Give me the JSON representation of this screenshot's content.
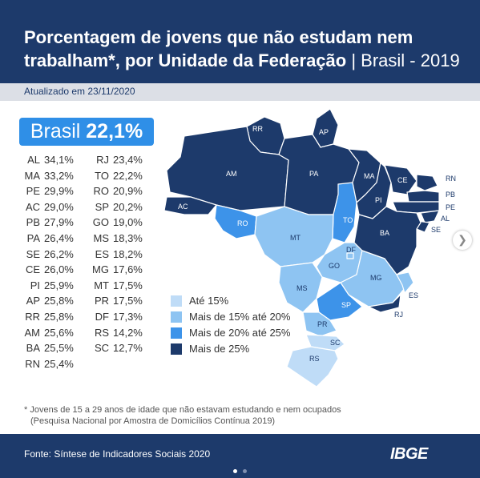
{
  "title": {
    "line1": "Porcentagem de jovens que não estudam nem",
    "line2_main": "trabalham*, por Unidade da Federação",
    "line2_sep": " | Brasil - 2019"
  },
  "updated": "Atualizado em 23/11/2020",
  "brasil": {
    "label": "Brasil",
    "value": "22,1%"
  },
  "ranking_left": [
    {
      "uf": "AL",
      "value": "34,1%"
    },
    {
      "uf": "MA",
      "value": "33,2%"
    },
    {
      "uf": "PE",
      "value": "29,9%"
    },
    {
      "uf": "AC",
      "value": "29,0%"
    },
    {
      "uf": "PB",
      "value": "27,9%"
    },
    {
      "uf": "PA",
      "value": "26,4%"
    },
    {
      "uf": "SE",
      "value": "26,2%"
    },
    {
      "uf": "CE",
      "value": "26,0%"
    },
    {
      "uf": "PI",
      "value": "25,9%"
    },
    {
      "uf": "AP",
      "value": "25,8%"
    },
    {
      "uf": "RR",
      "value": "25,8%"
    },
    {
      "uf": "AM",
      "value": "25,6%"
    },
    {
      "uf": "BA",
      "value": "25,5%"
    },
    {
      "uf": "RN",
      "value": "25,4%"
    }
  ],
  "ranking_right": [
    {
      "uf": "RJ",
      "value": "23,4%"
    },
    {
      "uf": "TO",
      "value": "22,2%"
    },
    {
      "uf": "RO",
      "value": "20,9%"
    },
    {
      "uf": "SP",
      "value": "20,2%"
    },
    {
      "uf": "GO",
      "value": "19,0%"
    },
    {
      "uf": "MS",
      "value": "18,3%"
    },
    {
      "uf": "ES",
      "value": "18,2%"
    },
    {
      "uf": "MG",
      "value": "17,6%"
    },
    {
      "uf": "MT",
      "value": "17,5%"
    },
    {
      "uf": "PR",
      "value": "17,5%"
    },
    {
      "uf": "DF",
      "value": "17,3%"
    },
    {
      "uf": "RS",
      "value": "14,2%"
    },
    {
      "uf": "SC",
      "value": "12,7%"
    }
  ],
  "legend": [
    {
      "label": "Até 15%",
      "color": "#bfdcf7"
    },
    {
      "label": "Mais de 15% até 20%",
      "color": "#8ec4f2"
    },
    {
      "label": "Mais de 20% até 25%",
      "color": "#3d93e9"
    },
    {
      "label": "Mais de 25%",
      "color": "#1d3a6b"
    }
  ],
  "map_labels": {
    "RR": "RR",
    "AP": "AP",
    "AM": "AM",
    "PA": "PA",
    "MA": "MA",
    "CE": "CE",
    "RN": "RN",
    "PB": "PB",
    "PE": "PE",
    "AL": "AL",
    "SE": "SE",
    "PI": "PI",
    "AC": "AC",
    "RO": "RO",
    "TO": "TO",
    "BA": "BA",
    "MT": "MT",
    "DF": "DF",
    "GO": "GO",
    "MG": "MG",
    "ES": "ES",
    "MS": "MS",
    "SP": "SP",
    "RJ": "RJ",
    "PR": "PR",
    "SC": "SC",
    "RS": "RS"
  },
  "footnote": {
    "line1": "* Jovens de 15 a 29 anos de idade que não estavam estudando e nem ocupados",
    "line2": "(Pesquisa Nacional por Amostra de Domicílios Contínua 2019)"
  },
  "source": "Fonte: Síntese de Indicadores Sociais 2020",
  "logo": "IBGE",
  "nav_icon": "chevron-right-icon"
}
